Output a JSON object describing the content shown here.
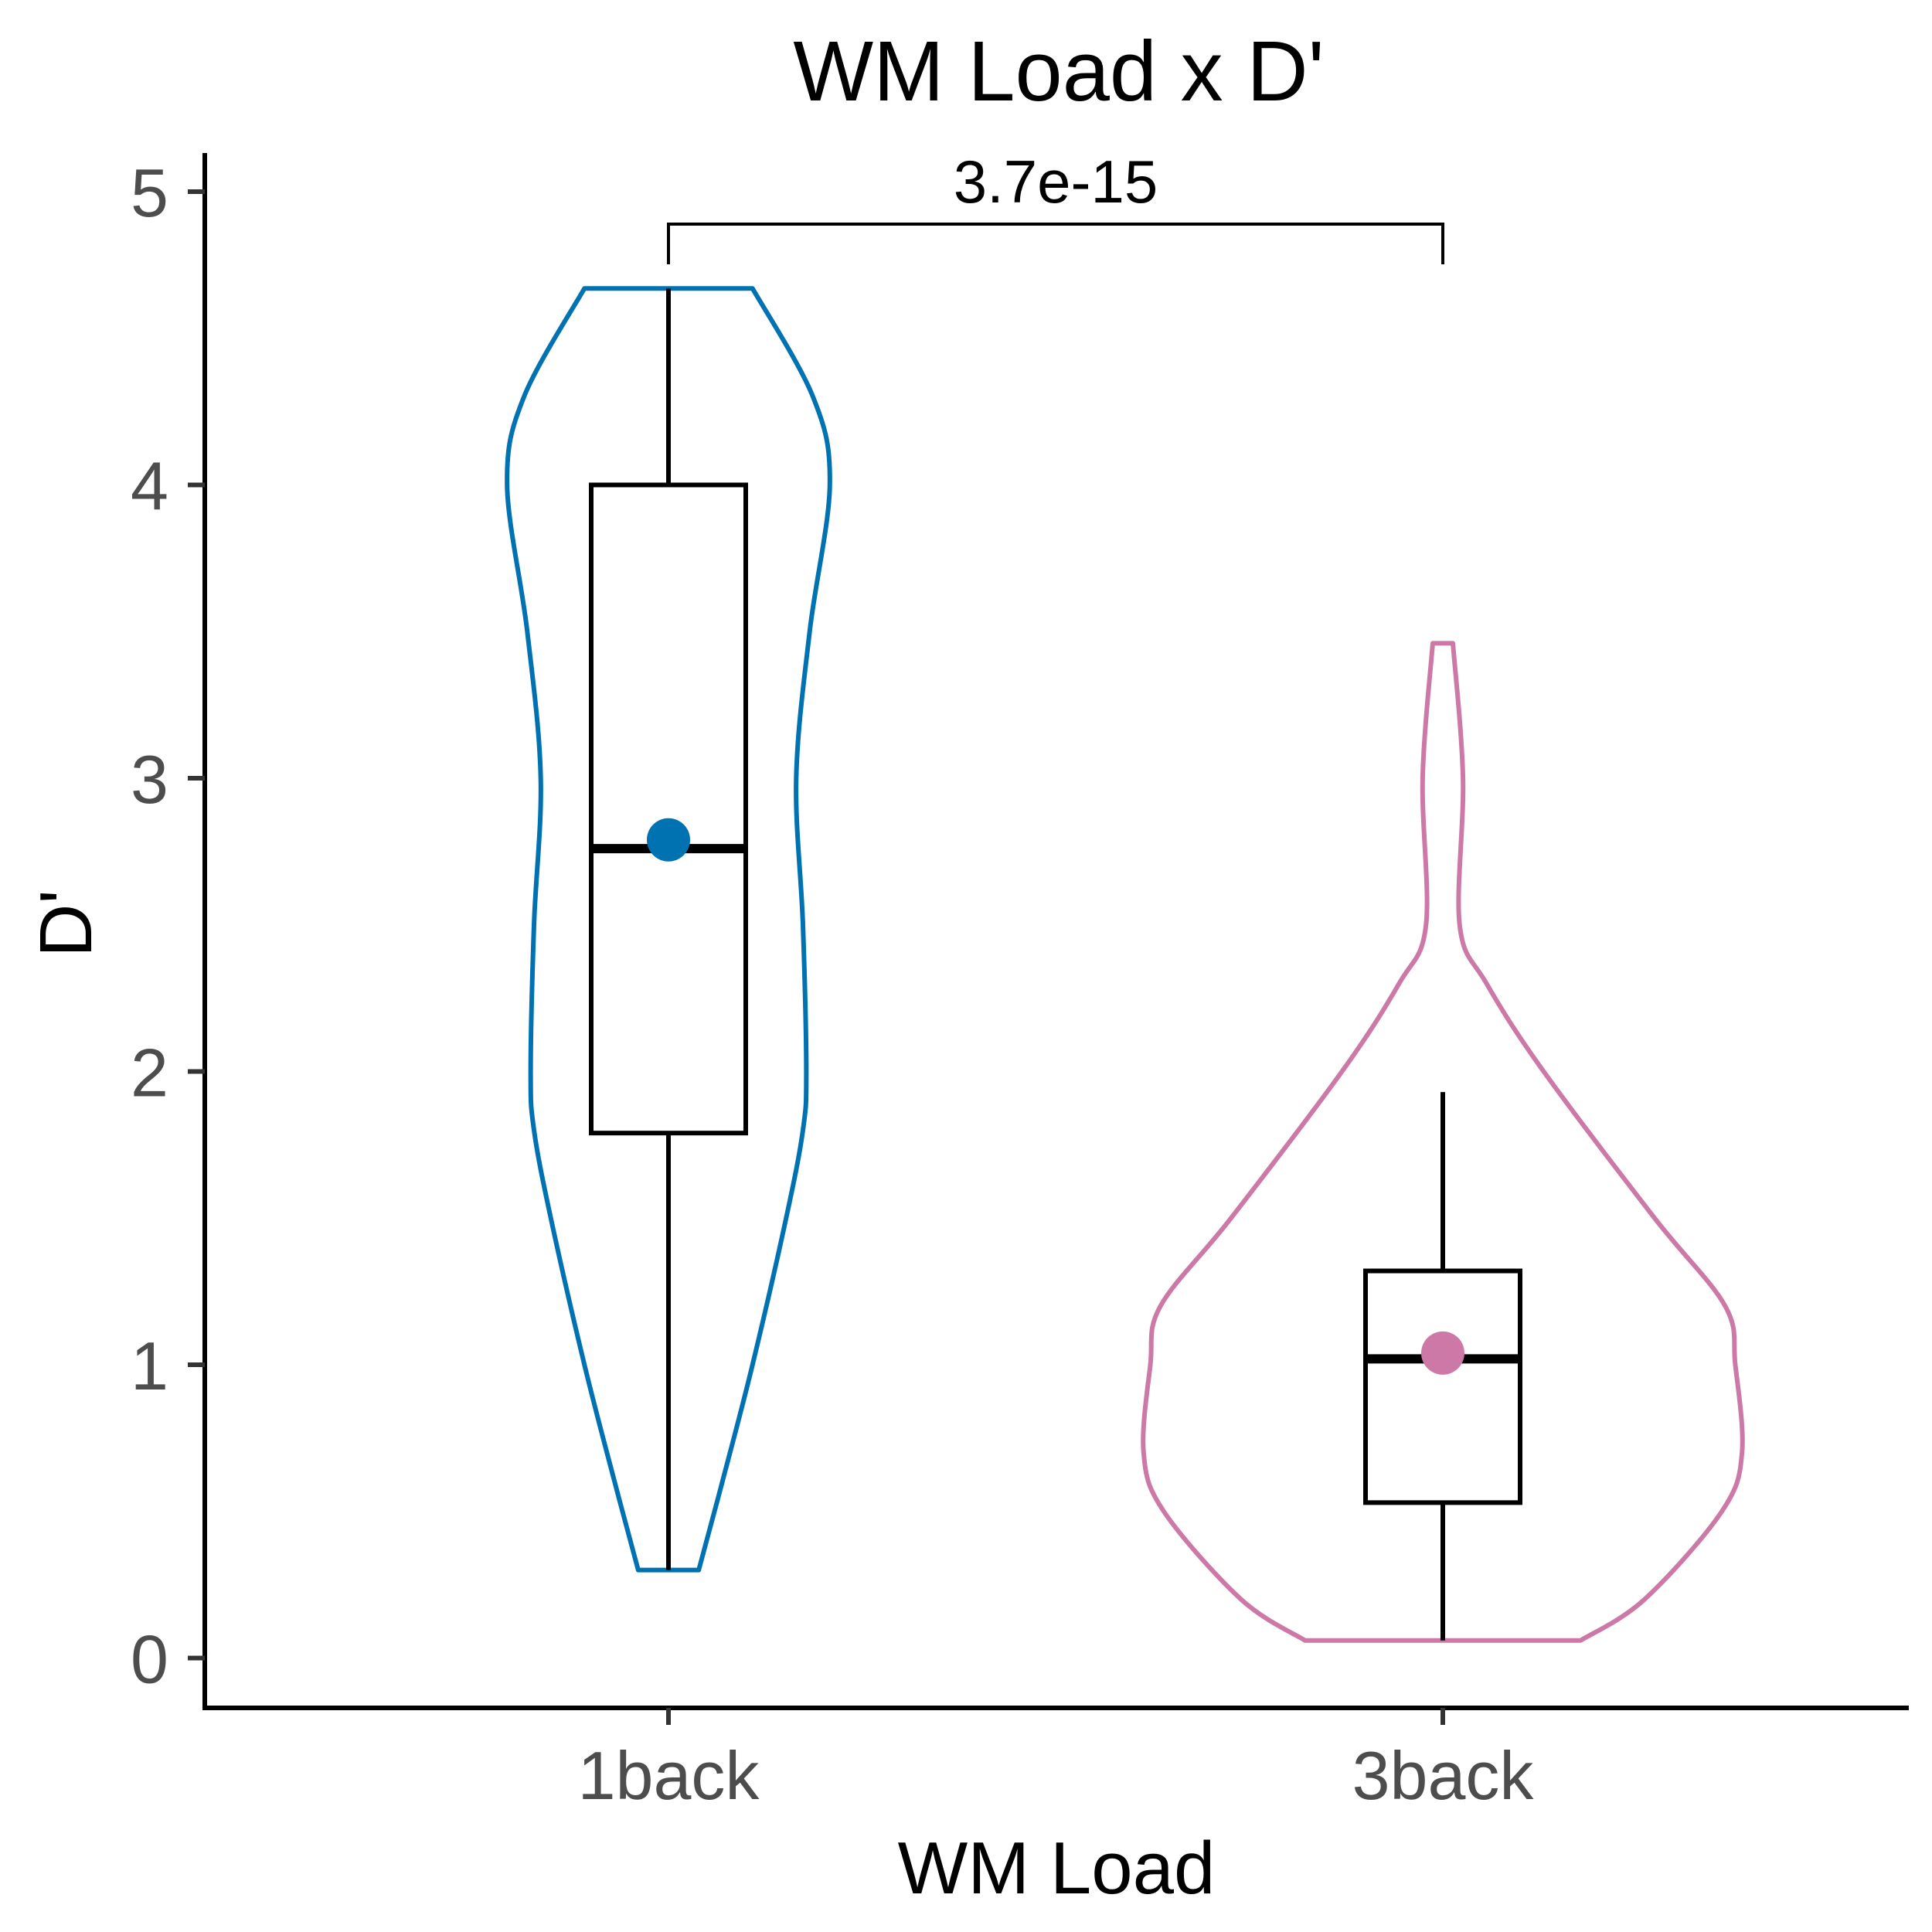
{
  "chart_data": {
    "type": "violin",
    "title": "WM Load x D'",
    "xlabel": "WM Load",
    "ylabel": "D'",
    "categories": [
      "1back",
      "3back"
    ],
    "ylim": [
      -0.18,
      5.1
    ],
    "yticks": [
      0,
      1,
      2,
      3,
      4,
      5
    ],
    "grid": false,
    "legend": "none",
    "series": [
      {
        "category": "1back",
        "color": "#0072B2",
        "violin": {
          "range": [
            0.3,
            4.67
          ],
          "density": [
            [
              0.3,
              0.09
            ],
            [
              0.6,
              0.16
            ],
            [
              1.0,
              0.25
            ],
            [
              1.5,
              0.35
            ],
            [
              1.8,
              0.4
            ],
            [
              2.0,
              0.41
            ],
            [
              2.5,
              0.4
            ],
            [
              3.0,
              0.38
            ],
            [
              3.5,
              0.42
            ],
            [
              4.0,
              0.48
            ],
            [
              4.3,
              0.43
            ],
            [
              4.67,
              0.25
            ]
          ]
        },
        "box": {
          "whisker_low": 0.3,
          "q1": 1.79,
          "median": 2.76,
          "q3": 4.0,
          "whisker_high": 4.67
        },
        "mean": 2.79
      },
      {
        "category": "3back",
        "color": "#CC79A7",
        "violin": {
          "range": [
            0.06,
            3.46
          ],
          "density": [
            [
              0.06,
              0.41
            ],
            [
              0.2,
              0.6
            ],
            [
              0.5,
              0.83
            ],
            [
              0.7,
              0.89
            ],
            [
              1.0,
              0.87
            ],
            [
              1.2,
              0.84
            ],
            [
              1.5,
              0.63
            ],
            [
              2.0,
              0.3
            ],
            [
              2.3,
              0.13
            ],
            [
              2.5,
              0.05
            ],
            [
              3.0,
              0.06
            ],
            [
              3.46,
              0.03
            ]
          ]
        },
        "box": {
          "whisker_low": 0.06,
          "q1": 0.53,
          "median": 1.02,
          "q3": 1.32,
          "whisker_high": 1.93
        },
        "mean": 1.04
      }
    ],
    "annotations": [
      {
        "type": "significance-bracket",
        "from": "1back",
        "to": "3back",
        "label": "3.7e-15"
      }
    ]
  }
}
